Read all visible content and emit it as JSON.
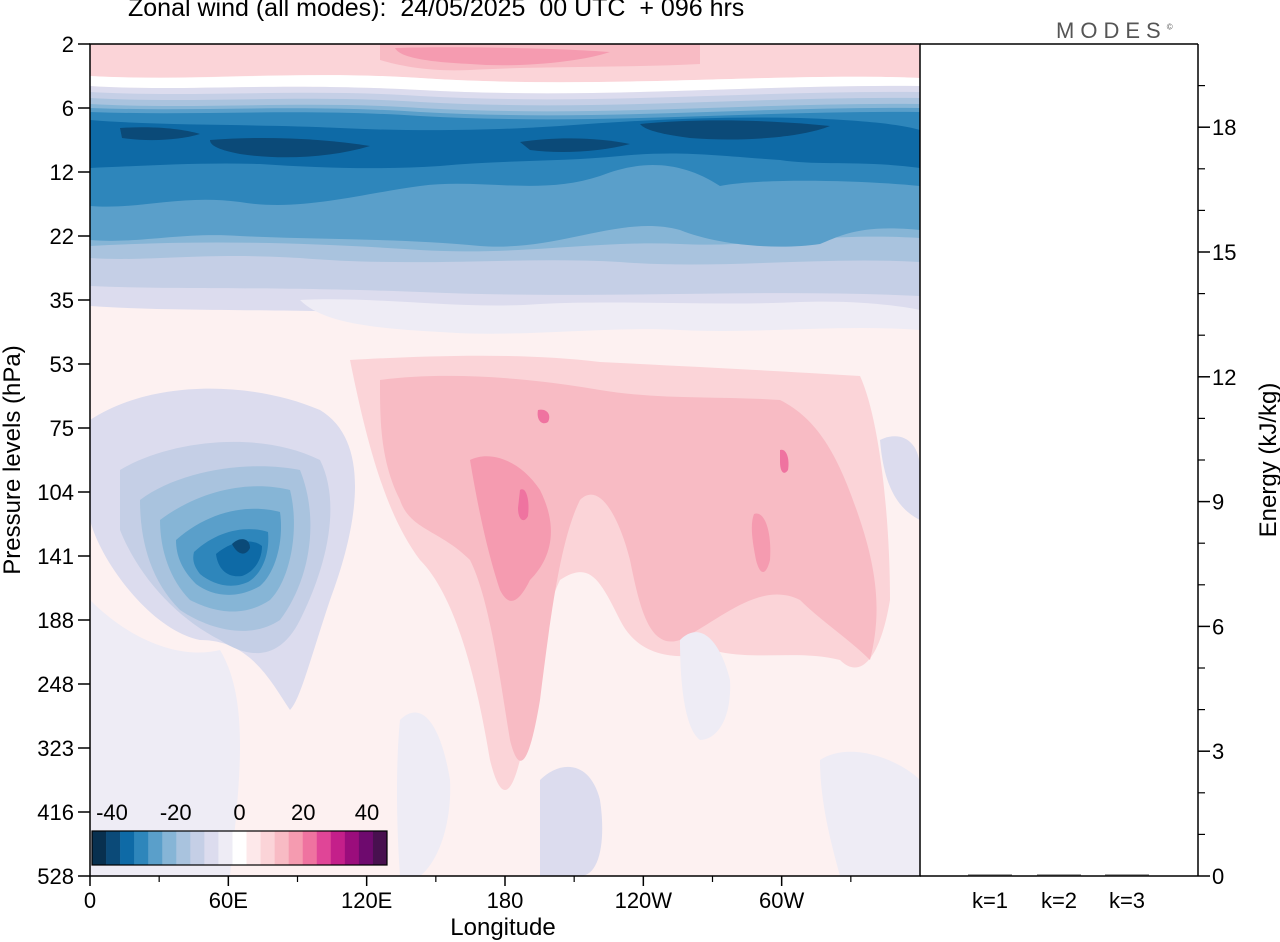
{
  "title": "Zonal wind (all modes):  24/05/2025  00 UTC  + 096 hrs",
  "logo": "MODES",
  "chart_data": [
    {
      "type": "heatmap",
      "variable": "zonal wind",
      "xlabel": "Longitude",
      "ylabel": "Pressure levels (hPa)",
      "x_ticks": [
        "0",
        "60E",
        "120E",
        "180",
        "120W",
        "60W"
      ],
      "y_ticks": [
        "2",
        "6",
        "12",
        "22",
        "35",
        "53",
        "75",
        "104",
        "141",
        "188",
        "248",
        "323",
        "416",
        "528"
      ],
      "colorbar": {
        "tick_labels": [
          "-40",
          "-20",
          "0",
          "20",
          "40"
        ],
        "colors": [
          "#08304f",
          "#0b4a78",
          "#0e6aa6",
          "#2e86bb",
          "#5a9fca",
          "#86b5d6",
          "#a9c3de",
          "#c5cfe6",
          "#dcdcee",
          "#eeecf5",
          "#ffffff",
          "#fde8ea",
          "#fbd4d8",
          "#f8bbc4",
          "#f59bb0",
          "#ef73a0",
          "#e04597",
          "#c41f8a",
          "#9b0d7c",
          "#6e0a6e",
          "#48104f"
        ]
      },
      "bands": [
        {
          "p": "2-5",
          "u_range": [
            0,
            25
          ]
        },
        {
          "p": "6-22",
          "u_range": [
            -40,
            -20
          ]
        },
        {
          "p": "22-35",
          "u_range": [
            -20,
            -5
          ]
        },
        {
          "p": "53-188",
          "u_range": [
            0,
            20
          ]
        },
        {
          "p": "104-188 near 60E",
          "u_range": [
            -35,
            -10
          ]
        }
      ]
    },
    {
      "type": "bar",
      "categories": [
        "k=1",
        "k=2",
        "k=3"
      ],
      "values": [
        0.01,
        0.01,
        0.01
      ],
      "ylabel": "Energy (kJ/kg)",
      "ylim": [
        0,
        20
      ],
      "y_ticks": [
        "0",
        "3",
        "6",
        "9",
        "12",
        "15",
        "18"
      ]
    }
  ]
}
